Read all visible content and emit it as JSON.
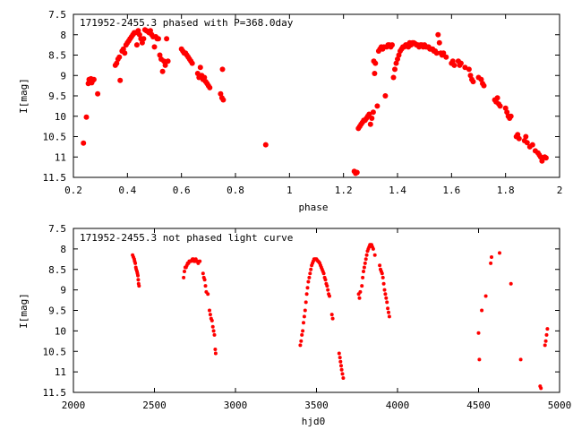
{
  "chart_data": [
    {
      "type": "scatter",
      "title": "171952-2455.3 phased with P=368.0day",
      "xlabel": "phase",
      "ylabel": "I[mag]",
      "xlim": [
        0.2,
        2.0
      ],
      "ylim": [
        7.5,
        11.5
      ],
      "y_inverted": true,
      "xticks": [
        0.2,
        0.4,
        0.6,
        0.8,
        1.0,
        1.2,
        1.4,
        1.6,
        1.8,
        2.0
      ],
      "xtick_labels": [
        "0.2",
        "0.4",
        "0.6",
        "0.8",
        "1",
        "1.2",
        "1.4",
        "1.6",
        "1.8",
        "2"
      ],
      "yticks": [
        7.5,
        8,
        8.5,
        9,
        9.5,
        10,
        10.5,
        11,
        11.5
      ],
      "ytick_labels": [
        "7.5",
        "8",
        "8.5",
        "9",
        "9.5",
        "10",
        "10.5",
        "11",
        "11.5"
      ],
      "marker_color": "#ff0000",
      "grid": false,
      "points": [
        [
          0.237,
          10.66
        ],
        [
          0.248,
          10.02
        ],
        [
          0.255,
          9.2
        ],
        [
          0.258,
          9.1
        ],
        [
          0.262,
          9.15
        ],
        [
          0.265,
          9.08
        ],
        [
          0.268,
          9.18
        ],
        [
          0.272,
          9.12
        ],
        [
          0.276,
          9.1
        ],
        [
          0.29,
          9.45
        ],
        [
          0.355,
          8.75
        ],
        [
          0.36,
          8.7
        ],
        [
          0.365,
          8.6
        ],
        [
          0.37,
          8.55
        ],
        [
          0.373,
          9.12
        ],
        [
          0.38,
          8.4
        ],
        [
          0.385,
          8.35
        ],
        [
          0.39,
          8.45
        ],
        [
          0.395,
          8.25
        ],
        [
          0.4,
          8.2
        ],
        [
          0.405,
          8.15
        ],
        [
          0.41,
          8.1
        ],
        [
          0.415,
          8.05
        ],
        [
          0.42,
          8.0
        ],
        [
          0.425,
          7.95
        ],
        [
          0.43,
          7.95
        ],
        [
          0.435,
          8.25
        ],
        [
          0.44,
          7.9
        ],
        [
          0.445,
          8.0
        ],
        [
          0.45,
          8.1
        ],
        [
          0.455,
          8.2
        ],
        [
          0.46,
          8.1
        ],
        [
          0.465,
          7.88
        ],
        [
          0.47,
          7.9
        ],
        [
          0.475,
          7.92
        ],
        [
          0.48,
          7.95
        ],
        [
          0.485,
          7.9
        ],
        [
          0.49,
          8.0
        ],
        [
          0.495,
          8.05
        ],
        [
          0.5,
          8.3
        ],
        [
          0.505,
          8.05
        ],
        [
          0.51,
          8.1
        ],
        [
          0.515,
          8.1
        ],
        [
          0.52,
          8.5
        ],
        [
          0.525,
          8.6
        ],
        [
          0.53,
          8.9
        ],
        [
          0.535,
          8.65
        ],
        [
          0.54,
          8.75
        ],
        [
          0.545,
          8.1
        ],
        [
          0.55,
          8.65
        ],
        [
          0.6,
          8.35
        ],
        [
          0.605,
          8.4
        ],
        [
          0.61,
          8.45
        ],
        [
          0.615,
          8.45
        ],
        [
          0.62,
          8.5
        ],
        [
          0.625,
          8.55
        ],
        [
          0.63,
          8.6
        ],
        [
          0.635,
          8.65
        ],
        [
          0.64,
          8.7
        ],
        [
          0.66,
          8.95
        ],
        [
          0.665,
          9.05
        ],
        [
          0.67,
          8.8
        ],
        [
          0.675,
          9.0
        ],
        [
          0.68,
          9.1
        ],
        [
          0.685,
          9.05
        ],
        [
          0.69,
          9.15
        ],
        [
          0.695,
          9.2
        ],
        [
          0.7,
          9.25
        ],
        [
          0.705,
          9.3
        ],
        [
          0.745,
          9.45
        ],
        [
          0.75,
          9.55
        ],
        [
          0.752,
          8.85
        ],
        [
          0.755,
          9.6
        ],
        [
          0.912,
          10.7
        ],
        [
          1.24,
          11.35
        ],
        [
          1.245,
          11.4
        ],
        [
          1.25,
          11.38
        ],
        [
          1.255,
          10.3
        ],
        [
          1.26,
          10.25
        ],
        [
          1.265,
          10.2
        ],
        [
          1.27,
          10.15
        ],
        [
          1.275,
          10.1
        ],
        [
          1.28,
          10.1
        ],
        [
          1.285,
          10.05
        ],
        [
          1.29,
          10.0
        ],
        [
          1.295,
          9.95
        ],
        [
          1.3,
          10.2
        ],
        [
          1.305,
          10.05
        ],
        [
          1.31,
          9.9
        ],
        [
          1.312,
          8.65
        ],
        [
          1.315,
          8.95
        ],
        [
          1.318,
          8.7
        ],
        [
          1.325,
          9.75
        ],
        [
          1.33,
          8.4
        ],
        [
          1.335,
          8.35
        ],
        [
          1.34,
          8.3
        ],
        [
          1.345,
          8.35
        ],
        [
          1.35,
          8.3
        ],
        [
          1.355,
          9.5
        ],
        [
          1.36,
          8.3
        ],
        [
          1.365,
          8.25
        ],
        [
          1.37,
          8.25
        ],
        [
          1.375,
          8.3
        ],
        [
          1.38,
          8.25
        ],
        [
          1.385,
          9.05
        ],
        [
          1.39,
          8.85
        ],
        [
          1.395,
          8.7
        ],
        [
          1.4,
          8.6
        ],
        [
          1.405,
          8.5
        ],
        [
          1.41,
          8.4
        ],
        [
          1.415,
          8.35
        ],
        [
          1.42,
          8.3
        ],
        [
          1.425,
          8.3
        ],
        [
          1.43,
          8.25
        ],
        [
          1.435,
          8.25
        ],
        [
          1.44,
          8.3
        ],
        [
          1.445,
          8.2
        ],
        [
          1.45,
          8.25
        ],
        [
          1.455,
          8.2
        ],
        [
          1.46,
          8.2
        ],
        [
          1.465,
          8.22
        ],
        [
          1.47,
          8.25
        ],
        [
          1.475,
          8.25
        ],
        [
          1.48,
          8.3
        ],
        [
          1.485,
          8.25
        ],
        [
          1.49,
          8.25
        ],
        [
          1.495,
          8.3
        ],
        [
          1.5,
          8.25
        ],
        [
          1.505,
          8.3
        ],
        [
          1.51,
          8.3
        ],
        [
          1.515,
          8.3
        ],
        [
          1.52,
          8.35
        ],
        [
          1.525,
          8.35
        ],
        [
          1.53,
          8.35
        ],
        [
          1.535,
          8.4
        ],
        [
          1.54,
          8.4
        ],
        [
          1.545,
          8.45
        ],
        [
          1.55,
          8.0
        ],
        [
          1.555,
          8.2
        ],
        [
          1.56,
          8.45
        ],
        [
          1.565,
          8.5
        ],
        [
          1.57,
          8.45
        ],
        [
          1.58,
          8.55
        ],
        [
          1.6,
          8.7
        ],
        [
          1.605,
          8.65
        ],
        [
          1.61,
          8.75
        ],
        [
          1.625,
          8.65
        ],
        [
          1.63,
          8.75
        ],
        [
          1.635,
          8.7
        ],
        [
          1.65,
          8.8
        ],
        [
          1.665,
          8.85
        ],
        [
          1.67,
          9.0
        ],
        [
          1.675,
          9.1
        ],
        [
          1.68,
          9.15
        ],
        [
          1.7,
          9.05
        ],
        [
          1.71,
          9.1
        ],
        [
          1.715,
          9.2
        ],
        [
          1.72,
          9.25
        ],
        [
          1.76,
          9.6
        ],
        [
          1.765,
          9.65
        ],
        [
          1.77,
          9.55
        ],
        [
          1.775,
          9.7
        ],
        [
          1.78,
          9.75
        ],
        [
          1.8,
          9.8
        ],
        [
          1.805,
          9.9
        ],
        [
          1.81,
          10.0
        ],
        [
          1.815,
          10.05
        ],
        [
          1.82,
          10.0
        ],
        [
          1.84,
          10.5
        ],
        [
          1.845,
          10.45
        ],
        [
          1.85,
          10.55
        ],
        [
          1.87,
          10.6
        ],
        [
          1.875,
          10.5
        ],
        [
          1.88,
          10.65
        ],
        [
          1.89,
          10.75
        ],
        [
          1.9,
          10.7
        ],
        [
          1.91,
          10.85
        ],
        [
          1.92,
          10.9
        ],
        [
          1.925,
          10.95
        ],
        [
          1.93,
          11.0
        ],
        [
          1.935,
          11.1
        ],
        [
          1.945,
          11.0
        ],
        [
          1.95,
          11.02
        ]
      ]
    },
    {
      "type": "scatter",
      "title": "171952-2455.3 not phased light curve",
      "xlabel": "hjd0",
      "ylabel": "I[mag]",
      "xlim": [
        2000,
        5000
      ],
      "ylim": [
        7.5,
        11.5
      ],
      "y_inverted": true,
      "xticks": [
        2000,
        2500,
        3000,
        3500,
        4000,
        4500,
        5000
      ],
      "xtick_labels": [
        "2000",
        "2500",
        "3000",
        "3500",
        "4000",
        "4500",
        "5000"
      ],
      "yticks": [
        7.5,
        8,
        8.5,
        9,
        9.5,
        10,
        10.5,
        11,
        11.5
      ],
      "ytick_labels": [
        "7.5",
        "8",
        "8.5",
        "9",
        "9.5",
        "10",
        "10.5",
        "11",
        "11.5"
      ],
      "marker_color": "#ff0000",
      "grid": false,
      "points": [
        [
          2365,
          8.15
        ],
        [
          2370,
          8.2
        ],
        [
          2375,
          8.25
        ],
        [
          2378,
          8.3
        ],
        [
          2382,
          8.35
        ],
        [
          2385,
          8.45
        ],
        [
          2388,
          8.5
        ],
        [
          2392,
          8.55
        ],
        [
          2395,
          8.6
        ],
        [
          2398,
          8.65
        ],
        [
          2400,
          8.75
        ],
        [
          2402,
          8.85
        ],
        [
          2405,
          8.9
        ],
        [
          2680,
          8.7
        ],
        [
          2685,
          8.55
        ],
        [
          2690,
          8.45
        ],
        [
          2695,
          8.45
        ],
        [
          2700,
          8.4
        ],
        [
          2705,
          8.35
        ],
        [
          2710,
          8.35
        ],
        [
          2715,
          8.3
        ],
        [
          2720,
          8.3
        ],
        [
          2725,
          8.3
        ],
        [
          2730,
          8.28
        ],
        [
          2735,
          8.25
        ],
        [
          2740,
          8.25
        ],
        [
          2745,
          8.3
        ],
        [
          2750,
          8.3
        ],
        [
          2755,
          8.25
        ],
        [
          2760,
          8.3
        ],
        [
          2765,
          8.3
        ],
        [
          2770,
          8.35
        ],
        [
          2780,
          8.3
        ],
        [
          2800,
          8.6
        ],
        [
          2805,
          8.7
        ],
        [
          2810,
          8.75
        ],
        [
          2815,
          8.9
        ],
        [
          2820,
          9.05
        ],
        [
          2830,
          9.1
        ],
        [
          2840,
          9.5
        ],
        [
          2845,
          9.6
        ],
        [
          2850,
          9.7
        ],
        [
          2855,
          9.75
        ],
        [
          2860,
          9.9
        ],
        [
          2865,
          10.0
        ],
        [
          2870,
          10.1
        ],
        [
          2875,
          10.45
        ],
        [
          2878,
          10.55
        ],
        [
          3400,
          10.35
        ],
        [
          3405,
          10.25
        ],
        [
          3410,
          10.1
        ],
        [
          3415,
          10.0
        ],
        [
          3420,
          9.8
        ],
        [
          3425,
          9.65
        ],
        [
          3430,
          9.5
        ],
        [
          3435,
          9.3
        ],
        [
          3440,
          9.1
        ],
        [
          3445,
          8.95
        ],
        [
          3450,
          8.8
        ],
        [
          3455,
          8.7
        ],
        [
          3460,
          8.6
        ],
        [
          3465,
          8.5
        ],
        [
          3470,
          8.4
        ],
        [
          3475,
          8.35
        ],
        [
          3480,
          8.3
        ],
        [
          3485,
          8.25
        ],
        [
          3490,
          8.25
        ],
        [
          3495,
          8.25
        ],
        [
          3500,
          8.25
        ],
        [
          3505,
          8.28
        ],
        [
          3510,
          8.3
        ],
        [
          3515,
          8.32
        ],
        [
          3520,
          8.35
        ],
        [
          3525,
          8.4
        ],
        [
          3530,
          8.45
        ],
        [
          3535,
          8.5
        ],
        [
          3540,
          8.55
        ],
        [
          3545,
          8.6
        ],
        [
          3550,
          8.7
        ],
        [
          3555,
          8.75
        ],
        [
          3560,
          8.85
        ],
        [
          3565,
          8.9
        ],
        [
          3570,
          9.0
        ],
        [
          3575,
          9.1
        ],
        [
          3580,
          9.15
        ],
        [
          3595,
          9.6
        ],
        [
          3600,
          9.7
        ],
        [
          3640,
          10.55
        ],
        [
          3645,
          10.65
        ],
        [
          3648,
          10.75
        ],
        [
          3652,
          10.85
        ],
        [
          3655,
          10.95
        ],
        [
          3660,
          11.05
        ],
        [
          3665,
          11.15
        ],
        [
          3760,
          9.1
        ],
        [
          3765,
          9.2
        ],
        [
          3770,
          9.05
        ],
        [
          3780,
          8.9
        ],
        [
          3785,
          8.7
        ],
        [
          3790,
          8.55
        ],
        [
          3795,
          8.45
        ],
        [
          3800,
          8.35
        ],
        [
          3805,
          8.25
        ],
        [
          3810,
          8.15
        ],
        [
          3815,
          8.05
        ],
        [
          3820,
          8.0
        ],
        [
          3825,
          7.95
        ],
        [
          3830,
          7.9
        ],
        [
          3835,
          7.9
        ],
        [
          3840,
          7.9
        ],
        [
          3845,
          7.95
        ],
        [
          3850,
          8.0
        ],
        [
          3860,
          8.15
        ],
        [
          3890,
          8.4
        ],
        [
          3895,
          8.5
        ],
        [
          3900,
          8.55
        ],
        [
          3905,
          8.6
        ],
        [
          3910,
          8.7
        ],
        [
          3915,
          8.85
        ],
        [
          3920,
          9.0
        ],
        [
          3925,
          9.1
        ],
        [
          3930,
          9.2
        ],
        [
          3935,
          9.3
        ],
        [
          3940,
          9.45
        ],
        [
          3945,
          9.55
        ],
        [
          3950,
          9.65
        ],
        [
          4500,
          10.05
        ],
        [
          4505,
          10.7
        ],
        [
          4520,
          9.5
        ],
        [
          4545,
          9.15
        ],
        [
          4575,
          8.35
        ],
        [
          4580,
          8.2
        ],
        [
          4630,
          8.1
        ],
        [
          4700,
          8.85
        ],
        [
          4760,
          10.7
        ],
        [
          4880,
          11.35
        ],
        [
          4885,
          11.4
        ],
        [
          4910,
          10.35
        ],
        [
          4915,
          10.25
        ],
        [
          4920,
          10.1
        ],
        [
          4925,
          9.95
        ]
      ]
    }
  ]
}
